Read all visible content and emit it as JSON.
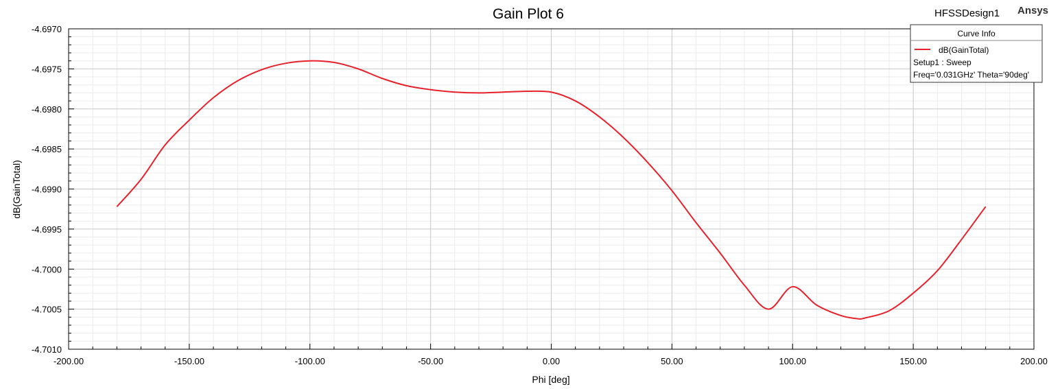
{
  "header": {
    "design_name": "HFSSDesign1",
    "brand": "Ansys"
  },
  "legend": {
    "title": "Curve Info",
    "entries": [
      {
        "label": "dB(GainTotal)",
        "detail_lines": [
          "Setup1 : Sweep",
          "Freq='0.031GHz' Theta='90deg'"
        ],
        "color": "#e8202a"
      }
    ]
  },
  "chart_data": {
    "type": "line",
    "title": "Gain Plot 6",
    "xlabel": "Phi [deg]",
    "ylabel": "dB(GainTotal)",
    "xlim": [
      -200,
      200
    ],
    "ylim": [
      -4.701,
      -4.697
    ],
    "x_ticks": [
      "-200.00",
      "-150.00",
      "-100.00",
      "-50.00",
      "0.00",
      "50.00",
      "100.00",
      "150.00",
      "200.00"
    ],
    "y_ticks": [
      "-4.6970",
      "-4.6975",
      "-4.6980",
      "-4.6985",
      "-4.6990",
      "-4.6995",
      "-4.7000",
      "-4.7005",
      "-4.7010"
    ],
    "grid": true,
    "legend_position": "top-right",
    "series": [
      {
        "name": "dB(GainTotal)",
        "color": "#e8202a",
        "x": [
          -180,
          -170,
          -160,
          -150,
          -140,
          -130,
          -120,
          -110,
          -100,
          -90,
          -80,
          -70,
          -60,
          -50,
          -40,
          -30,
          -20,
          -10,
          0,
          10,
          20,
          30,
          40,
          50,
          60,
          70,
          80,
          90,
          100,
          110,
          120,
          127,
          130,
          140,
          150,
          160,
          170,
          180
        ],
        "y": [
          -4.69922,
          -4.69888,
          -4.69845,
          -4.69814,
          -4.69786,
          -4.69765,
          -4.69751,
          -4.69743,
          -4.6974,
          -4.69742,
          -4.6975,
          -4.69762,
          -4.69771,
          -4.69776,
          -4.69779,
          -4.6978,
          -4.69779,
          -4.69778,
          -4.69779,
          -4.6979,
          -4.6981,
          -4.69836,
          -4.69867,
          -4.69902,
          -4.69942,
          -4.6998,
          -4.7002,
          -4.7005,
          -4.70022,
          -4.70045,
          -4.70058,
          -4.70062,
          -4.70061,
          -4.70052,
          -4.7003,
          -4.70002,
          -4.69963,
          -4.69922
        ]
      }
    ]
  }
}
